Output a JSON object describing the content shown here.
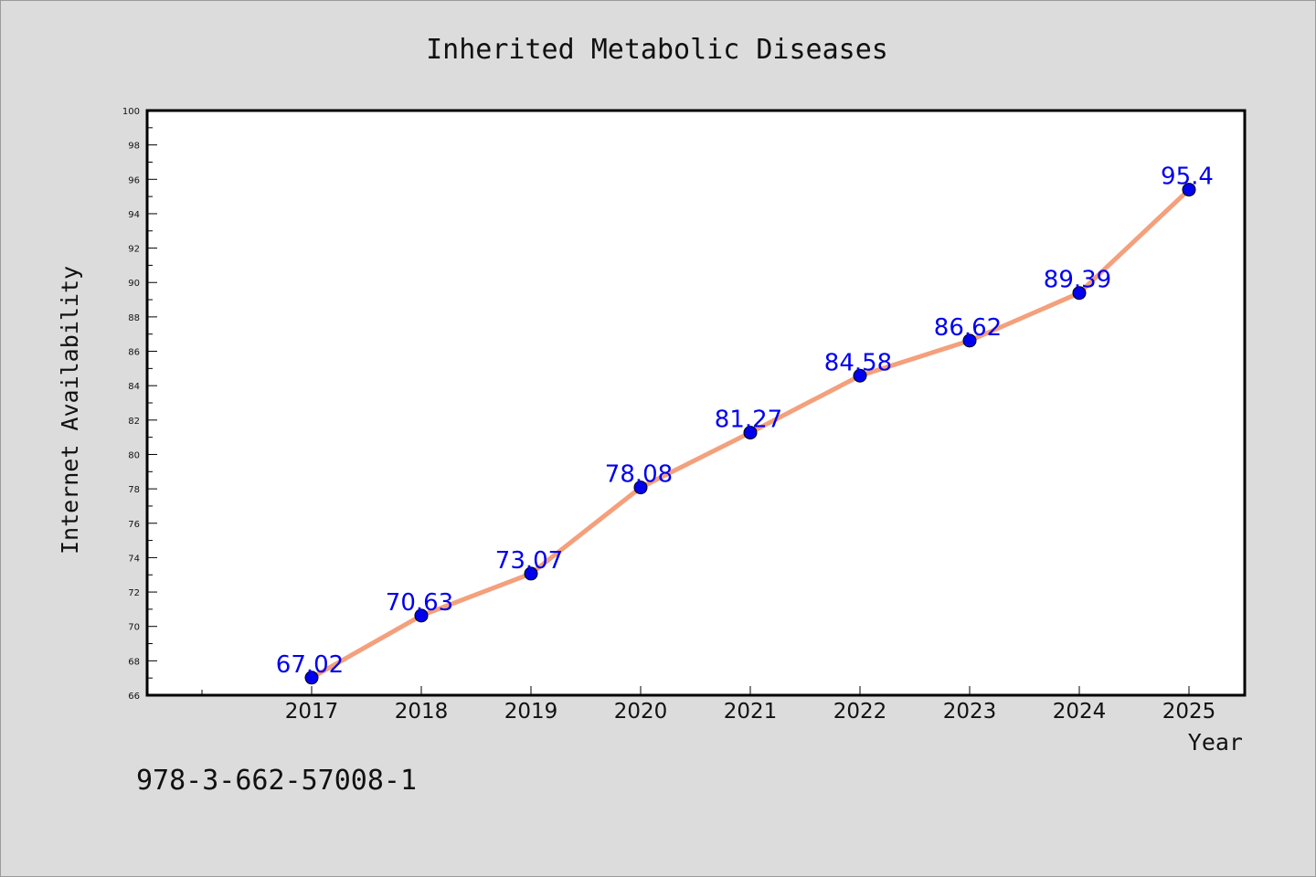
{
  "chart_data": {
    "type": "line",
    "title": "Inherited Metabolic Diseases",
    "xlabel": "Year",
    "ylabel": "Internet Availability",
    "categories": [
      "2017",
      "2018",
      "2019",
      "2020",
      "2021",
      "2022",
      "2023",
      "2024",
      "2025"
    ],
    "series": [
      {
        "values": [
          67.02,
          70.63,
          73.07,
          78.08,
          81.27,
          84.58,
          86.62,
          89.39,
          95.4
        ],
        "data_labels": [
          "67.02",
          "70.63",
          "73.07",
          "78.08",
          "81.27",
          "84.58",
          "86.62",
          "89.39",
          "95.4"
        ]
      }
    ],
    "ylim": [
      66,
      100
    ],
    "yticks": [
      "66",
      "68",
      "70",
      "72",
      "74",
      "76",
      "78",
      "80",
      "82",
      "84",
      "86",
      "88",
      "90",
      "92",
      "94",
      "96",
      "98",
      "100"
    ],
    "grid": false,
    "legend": "none",
    "colors": {
      "line": "#f4a07c",
      "marker": "#0000ee",
      "data_label": "#0000ee",
      "plot_background": "#ffffff",
      "page_background": "#dcdcdc"
    }
  },
  "footer": {
    "code": "978-3-662-57008-1"
  }
}
